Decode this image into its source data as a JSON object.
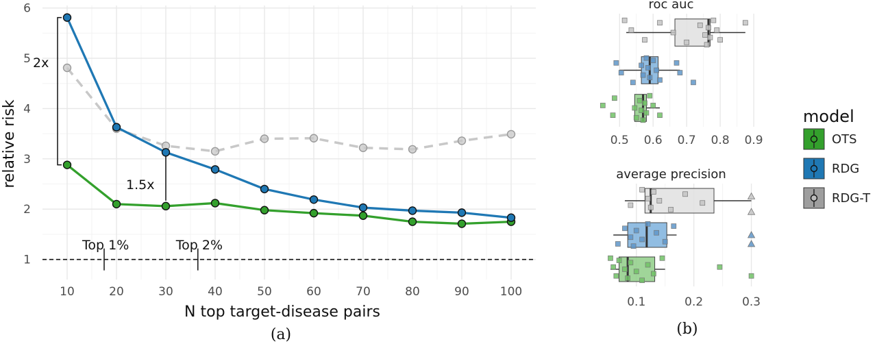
{
  "chart_data": [
    {
      "type": "line",
      "xlabel": "N top target-disease pairs",
      "ylabel": "relative risk",
      "x": [
        10,
        20,
        30,
        40,
        50,
        60,
        70,
        80,
        90,
        100
      ],
      "xlim": [
        5,
        105
      ],
      "ylim": [
        0.6,
        6.05
      ],
      "yticks": [
        1,
        2,
        3,
        4,
        5,
        6
      ],
      "series": [
        {
          "key": "OTS",
          "color": "#33a02c",
          "dashed": false,
          "values": [
            2.88,
            2.1,
            2.06,
            2.12,
            1.98,
            1.92,
            1.87,
            1.75,
            1.71,
            1.75
          ]
        },
        {
          "key": "RDG",
          "color": "#1f78b4",
          "dashed": false,
          "values": [
            5.81,
            3.63,
            3.13,
            2.79,
            2.4,
            2.19,
            2.03,
            1.97,
            1.93,
            1.83
          ]
        },
        {
          "key": "RDG-T",
          "color": "#c8c8c8",
          "dashed": true,
          "values": [
            4.81,
            3.6,
            3.26,
            3.15,
            3.4,
            3.41,
            3.22,
            3.19,
            3.36,
            3.49
          ]
        }
      ],
      "reference_line": 1,
      "annotations": {
        "fold_2x": "2x",
        "fold_15x": "1.5x",
        "top1": "Top 1%",
        "top2": "Top 2%"
      },
      "caption": "(a)"
    },
    {
      "type": "box",
      "panels": [
        {
          "title": "roc auc",
          "xlim": [
            0.43,
            0.91
          ],
          "xticks": [
            0.5,
            0.6,
            0.7,
            0.8,
            0.9
          ],
          "boxes": [
            {
              "model": "RDG-T",
              "whisker_low": 0.52,
              "q1": 0.665,
              "median": 0.765,
              "q3": 0.77,
              "whisker_high": 0.875,
              "points": [
                0.515,
                0.535,
                0.575,
                0.62,
                0.66,
                0.7,
                0.74,
                0.755,
                0.76,
                0.765,
                0.77,
                0.78,
                0.79,
                0.8,
                0.875
              ]
            },
            {
              "model": "RDG",
              "whisker_low": 0.5,
              "q1": 0.565,
              "median": 0.59,
              "q3": 0.615,
              "whisker_high": 0.68,
              "points": [
                0.49,
                0.505,
                0.54,
                0.565,
                0.57,
                0.58,
                0.585,
                0.59,
                0.6,
                0.61,
                0.62,
                0.67,
                0.68,
                0.72
              ]
            },
            {
              "model": "OTS",
              "whisker_low": 0.545,
              "q1": 0.545,
              "median": 0.57,
              "q3": 0.58,
              "whisker_high": 0.62,
              "points": [
                0.45,
                0.48,
                0.485,
                0.545,
                0.55,
                0.56,
                0.565,
                0.57,
                0.575,
                0.58,
                0.59,
                0.6,
                0.62
              ]
            }
          ]
        },
        {
          "title": "average precision",
          "xlim": [
            0.03,
            0.31
          ],
          "xticks": [
            0.1,
            0.2,
            0.3
          ],
          "boxes": [
            {
              "model": "RDG-T",
              "whisker_low": 0.08,
              "q1": 0.115,
              "median": 0.125,
              "q3": 0.235,
              "whisker_high": 0.3,
              "points": [
                0.09,
                0.11,
                0.12,
                0.125,
                0.13,
                0.14,
                0.16,
                0.185,
                0.215,
                0.3,
                0.3
              ]
            },
            {
              "model": "RDG",
              "whisker_low": 0.06,
              "q1": 0.085,
              "median": 0.118,
              "q3": 0.153,
              "whisker_high": 0.17,
              "points": [
                0.068,
                0.08,
                0.09,
                0.095,
                0.1,
                0.11,
                0.12,
                0.135,
                0.15,
                0.165,
                0.3,
                0.3
              ]
            },
            {
              "model": "OTS",
              "whisker_low": 0.055,
              "q1": 0.07,
              "median": 0.085,
              "q3": 0.132,
              "whisker_high": 0.15,
              "points": [
                0.055,
                0.06,
                0.065,
                0.07,
                0.08,
                0.085,
                0.09,
                0.1,
                0.11,
                0.12,
                0.13,
                0.145,
                0.245,
                0.3
              ]
            }
          ]
        }
      ],
      "legend": {
        "title": "model",
        "items": [
          {
            "label": "OTS",
            "color": "#33a02c"
          },
          {
            "label": "RDG",
            "color": "#1f78b4"
          },
          {
            "label": "RDG-T",
            "color": "#9e9e9e"
          }
        ]
      },
      "caption": "(b)"
    }
  ]
}
